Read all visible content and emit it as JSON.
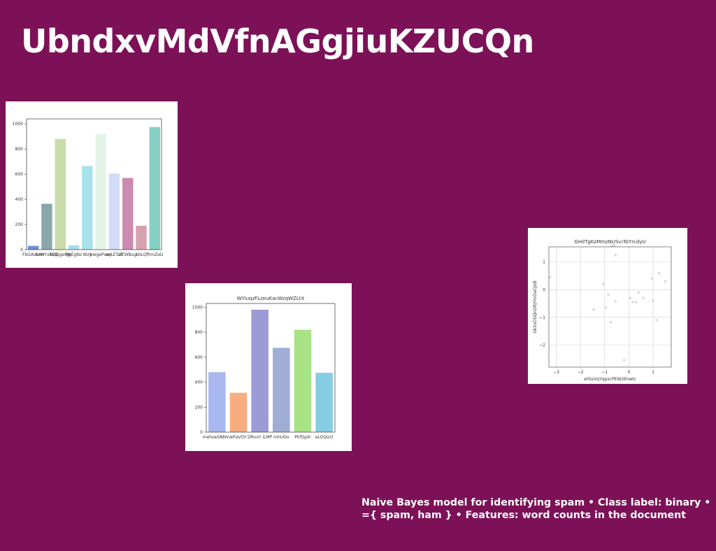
{
  "slide": {
    "title": "UbndxvMdVfnAGgjiuKZUCQn",
    "caption": "Naive Bayes model for identifying spam • Class label: binary • ={ spam, ham } • Features: word counts in the document"
  },
  "chart_data": [
    {
      "type": "bar",
      "title": "",
      "categories": [
        "FbGAdkxN",
        "uIXrYxTxQ",
        "NQQgeRJg",
        "NkEgNz",
        "Wzy",
        "bwgePvwr",
        "eqLETaK",
        "dTWBug",
        "kbLQ",
        "fhmZeU"
      ],
      "values": [
        30,
        365,
        880,
        35,
        665,
        920,
        605,
        570,
        190,
        975
      ],
      "colors": [
        "#6e8fd6",
        "#8aa6ad",
        "#cadca9",
        "#a9dbec",
        "#a8e2ec",
        "#e2f4e7",
        "#d2dcf8",
        "#cb8ab0",
        "#d6a2af",
        "#84d0c3"
      ],
      "yticks": [
        0,
        200,
        400,
        600,
        800,
        1000
      ],
      "ylim": [
        0,
        1040
      ]
    },
    {
      "type": "bar",
      "title": "WYiuqzFLzeuKacWzqWZLtX",
      "categories": [
        "mehoeSNNVv",
        "VFaVOY",
        "DRvxY iLMP",
        "mhUOo",
        "PkfGpih",
        "eLOQUcl"
      ],
      "values": [
        480,
        315,
        980,
        675,
        820,
        475
      ],
      "colors": [
        "#a9b8ee",
        "#f8ad80",
        "#9d9bd5",
        "#a0aed6",
        "#a7e384",
        "#86cce2"
      ],
      "yticks": [
        0,
        200,
        400,
        600,
        800,
        1000
      ],
      "ylim": [
        0,
        1030
      ]
    },
    {
      "type": "scatter",
      "title": "GHiITgKzMmzNUSvMbYrcdyU",
      "xlabel": "eliSsVqYqpxcPEWzthiwtc",
      "ylabel": "GkXxDSQnDRjYrvDaCjUB",
      "xlim": [
        -3.3,
        1.75
      ],
      "ylim": [
        -2.8,
        1.55
      ],
      "xticks": [
        -3,
        -2,
        -1,
        0,
        1
      ],
      "yticks": [
        -2,
        -1,
        0,
        1
      ],
      "grid": true,
      "point_color": "#d9d9d9",
      "points": [
        [
          -3.25,
          0.45
        ],
        [
          -1.45,
          -0.72
        ],
        [
          -1.05,
          0.2
        ],
        [
          -0.95,
          -0.65
        ],
        [
          -0.85,
          -0.18
        ],
        [
          -0.75,
          -1.18
        ],
        [
          -0.7,
          1.6
        ],
        [
          -0.6,
          1.6
        ],
        [
          -0.55,
          1.25
        ],
        [
          -0.55,
          -0.42
        ],
        [
          -0.25,
          1.75
        ],
        [
          -0.2,
          -2.55
        ],
        [
          0.05,
          -0.3
        ],
        [
          0.15,
          -0.45
        ],
        [
          0.3,
          -0.45
        ],
        [
          0.4,
          -0.1
        ],
        [
          0.6,
          -0.3
        ],
        [
          0.95,
          0.4
        ],
        [
          1.0,
          -0.4
        ],
        [
          1.15,
          -1.1
        ],
        [
          1.25,
          0.6
        ],
        [
          1.5,
          0.3
        ]
      ]
    }
  ]
}
